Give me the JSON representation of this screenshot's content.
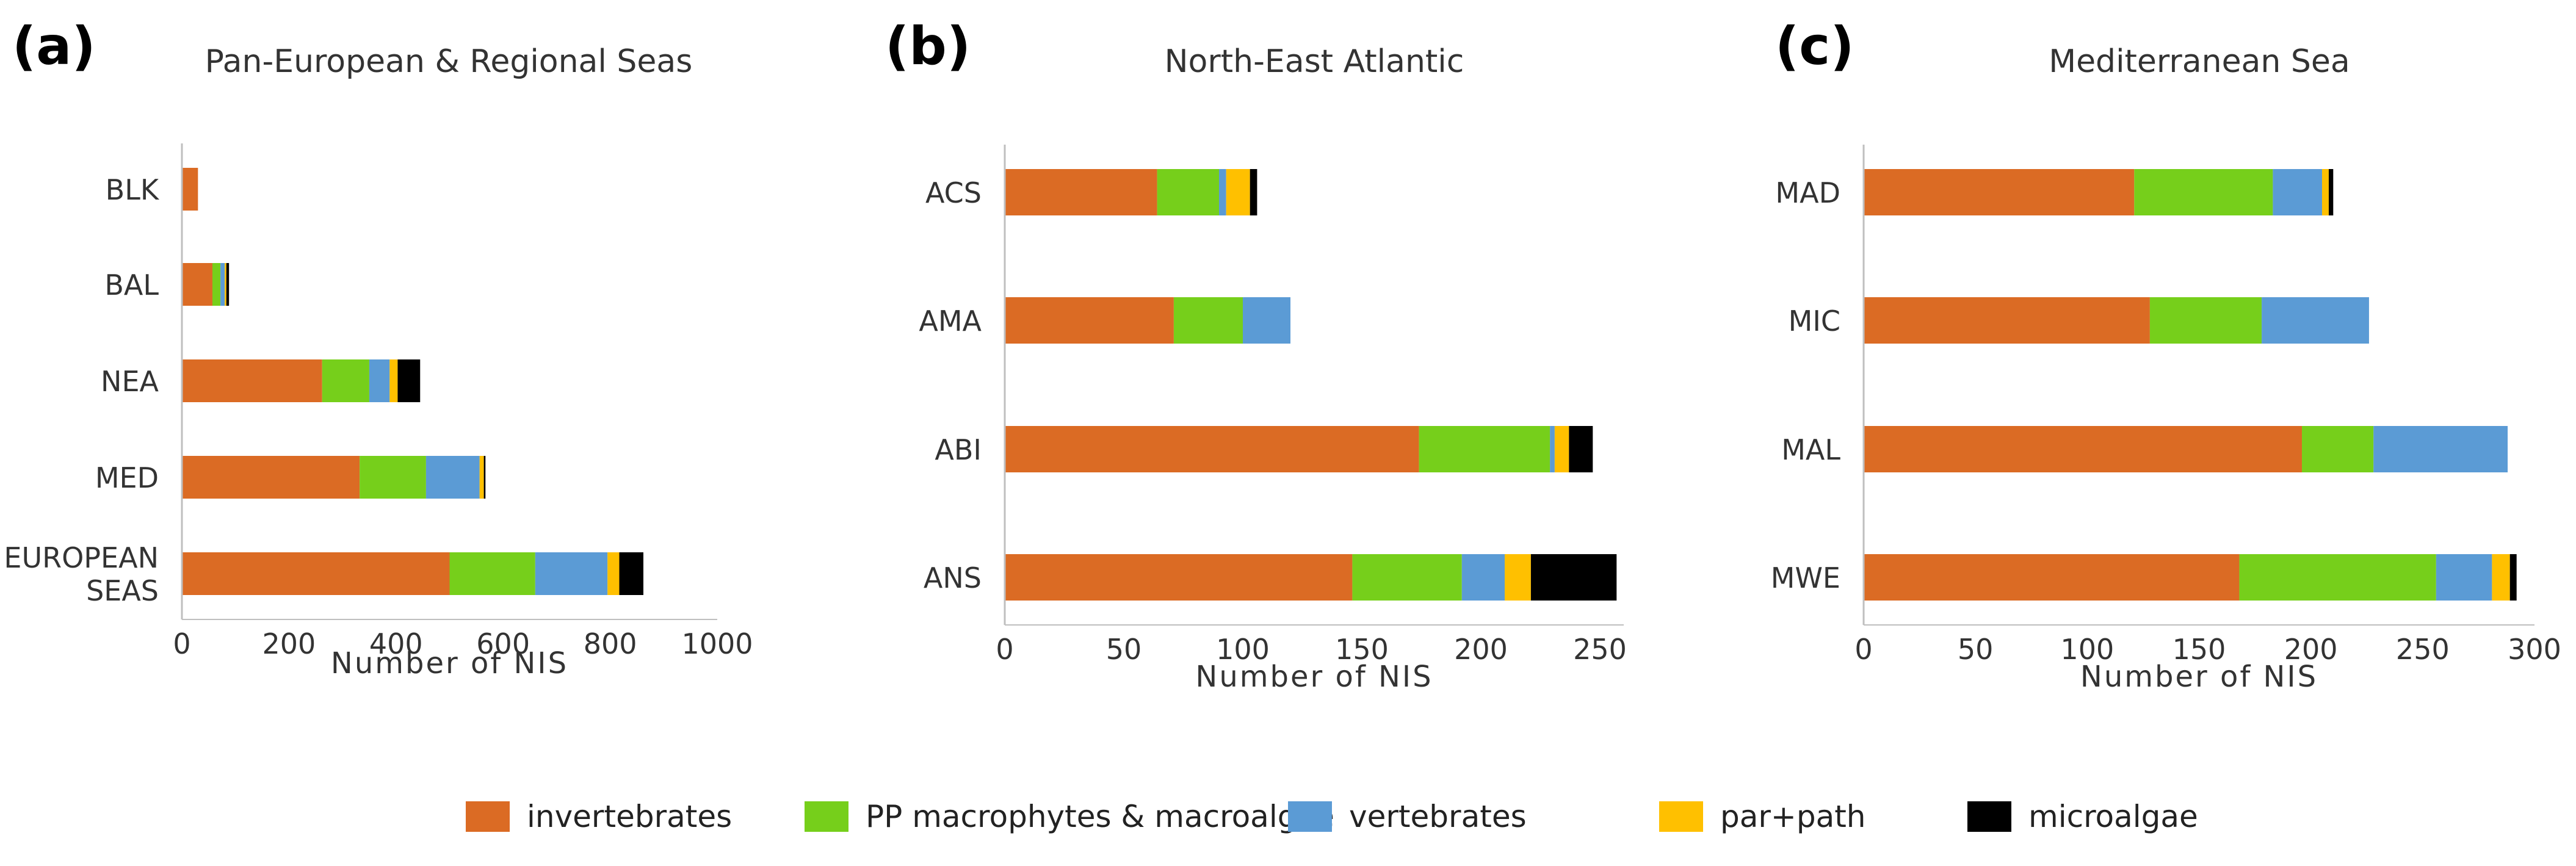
{
  "legend": [
    {
      "key": "invertebrates",
      "label": "invertebrates",
      "color": "#DB6B24"
    },
    {
      "key": "pp",
      "label": "PP macrophytes & macroalgae",
      "color": "#76CF1B"
    },
    {
      "key": "vertebrates",
      "label": "vertebrates",
      "color": "#5B9BD5"
    },
    {
      "key": "parpath",
      "label": "par+path",
      "color": "#FFC000"
    },
    {
      "key": "microalgae",
      "label": "microalgae",
      "color": "#000000"
    }
  ],
  "chart_data": [
    {
      "type": "bar",
      "orientation": "horizontal",
      "stacked": true,
      "panel": "(a)",
      "title": "Pan-European & Regional Seas",
      "xlabel": "Number of NIS",
      "ylabel": "",
      "xlim": [
        0,
        1000
      ],
      "xticks": [
        0,
        200,
        400,
        600,
        800,
        1000
      ],
      "grid": false,
      "categories": [
        "BLK",
        "BAL",
        "NEA",
        "MED",
        "EUROPEAN SEAS"
      ],
      "series": [
        {
          "name": "invertebrates",
          "values": [
            30,
            57,
            262,
            332,
            500
          ]
        },
        {
          "name": "PP macrophytes & macroalgae",
          "values": [
            0,
            15,
            88,
            124,
            160
          ]
        },
        {
          "name": "vertebrates",
          "values": [
            0,
            8,
            38,
            100,
            135
          ]
        },
        {
          "name": "par+path",
          "values": [
            0,
            3,
            15,
            8,
            22
          ]
        },
        {
          "name": "microalgae",
          "values": [
            0,
            5,
            42,
            3,
            45
          ]
        }
      ]
    },
    {
      "type": "bar",
      "orientation": "horizontal",
      "stacked": true,
      "panel": "(b)",
      "title": "North-East Atlantic",
      "xlabel": "Number of NIS",
      "ylabel": "",
      "xlim": [
        0,
        260
      ],
      "xticks": [
        0,
        50,
        100,
        150,
        200,
        250
      ],
      "grid": false,
      "categories": [
        "ACS",
        "AMA",
        "ABI",
        "ANS"
      ],
      "series": [
        {
          "name": "invertebrates",
          "values": [
            64,
            71,
            174,
            146
          ]
        },
        {
          "name": "PP macrophytes & macroalgae",
          "values": [
            26,
            29,
            55,
            46
          ]
        },
        {
          "name": "vertebrates",
          "values": [
            3,
            20,
            2,
            18
          ]
        },
        {
          "name": "par+path",
          "values": [
            10,
            0,
            6,
            11
          ]
        },
        {
          "name": "microalgae",
          "values": [
            3,
            0,
            10,
            36
          ]
        }
      ]
    },
    {
      "type": "bar",
      "orientation": "horizontal",
      "stacked": true,
      "panel": "(c)",
      "title": "Mediterranean Sea",
      "xlabel": "Number of NIS",
      "ylabel": "",
      "xlim": [
        0,
        300
      ],
      "xticks": [
        0,
        50,
        100,
        150,
        200,
        250,
        300
      ],
      "grid": false,
      "categories": [
        "MAD",
        "MIC",
        "MAL",
        "MWE"
      ],
      "series": [
        {
          "name": "invertebrates",
          "values": [
            121,
            128,
            196,
            168
          ]
        },
        {
          "name": "PP macrophytes & macroalgae",
          "values": [
            62,
            50,
            32,
            88
          ]
        },
        {
          "name": "vertebrates",
          "values": [
            22,
            48,
            60,
            25
          ]
        },
        {
          "name": "par+path",
          "values": [
            3,
            0,
            0,
            8
          ]
        },
        {
          "name": "microalgae",
          "values": [
            2,
            0,
            0,
            3
          ]
        }
      ]
    }
  ]
}
